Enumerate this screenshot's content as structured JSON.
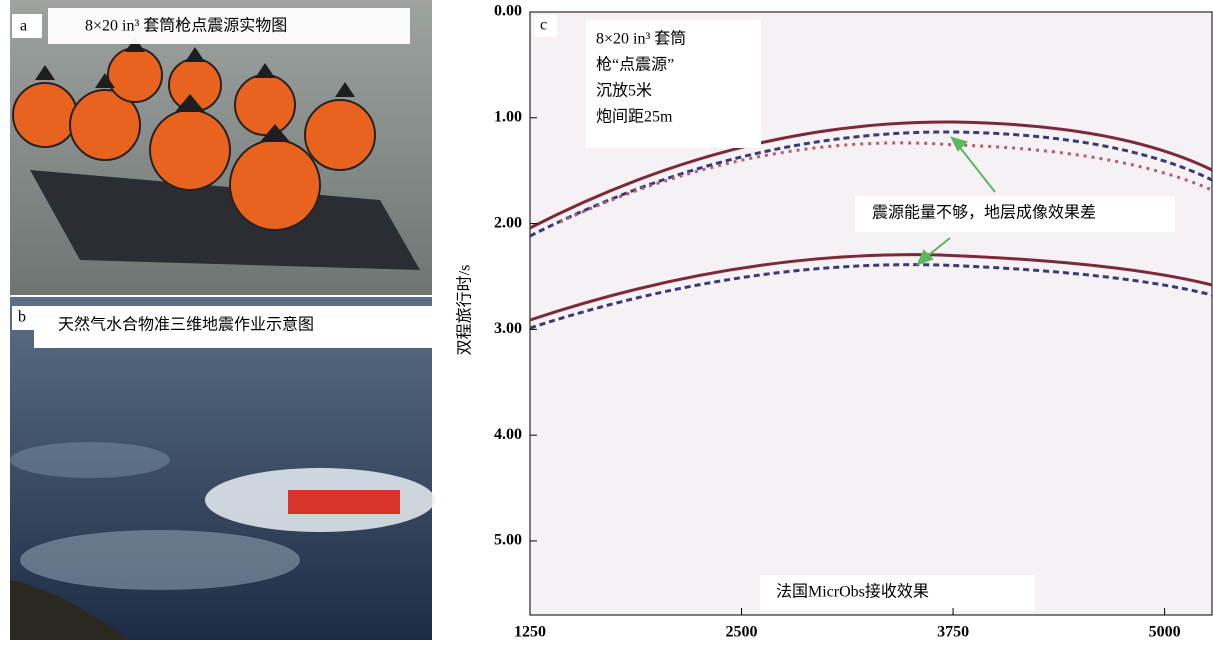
{
  "panel_a": {
    "letter": "a",
    "caption": "8×20 in³ 套筒枪点震源实物图"
  },
  "panel_b": {
    "letter": "b",
    "caption": "天然气水合物准三维地震作业示意图"
  },
  "chart_data": {
    "type": "seismic",
    "letter": "c",
    "annotation": [
      "8×20 in³ 套筒",
      "枪“点震源”",
      "沉放5米",
      "炮间距25m"
    ],
    "callout": "震源能量不够，地层成像效果差",
    "footnote": "法国MicrObs接收效果",
    "ylabel": "双程旅行时/s",
    "xlim": [
      1250,
      5280
    ],
    "ylim": [
      0,
      5.7
    ],
    "y_inverted": true,
    "xticks": [
      1250,
      2500,
      3750,
      5000
    ],
    "yticks": [
      {
        "value": 0,
        "label": "0.00"
      },
      {
        "value": 1,
        "label": "1.00"
      },
      {
        "value": 2,
        "label": "2.00"
      },
      {
        "value": 3,
        "label": "3.00"
      },
      {
        "value": 4,
        "label": "4.00"
      },
      {
        "value": 5,
        "label": "5.00"
      }
    ]
  }
}
